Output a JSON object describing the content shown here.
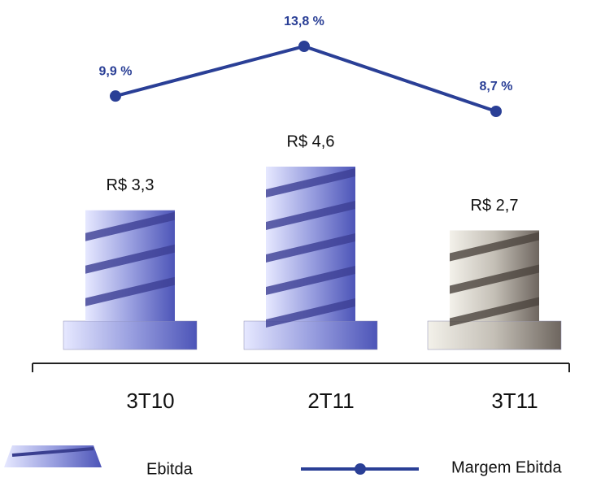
{
  "chart_data": {
    "type": "combo",
    "categories": [
      "3T10",
      "2T11",
      "3T11"
    ],
    "series": [
      {
        "name": "Ebitda",
        "type": "bar",
        "colors": [
          "#7a80d2",
          "#7a80d2",
          "#b3aea6"
        ],
        "values": [
          3.3,
          4.6,
          2.7
        ],
        "value_labels": [
          "R$ 3,3",
          "R$ 4,6",
          "R$ 2,7"
        ]
      },
      {
        "name": "Margem Ebitda",
        "type": "line",
        "color": "#2a3f96",
        "values": [
          9.9,
          13.8,
          8.7
        ],
        "value_labels": [
          "9,9 %",
          "13,8 %",
          "8,7 %"
        ]
      }
    ]
  }
}
